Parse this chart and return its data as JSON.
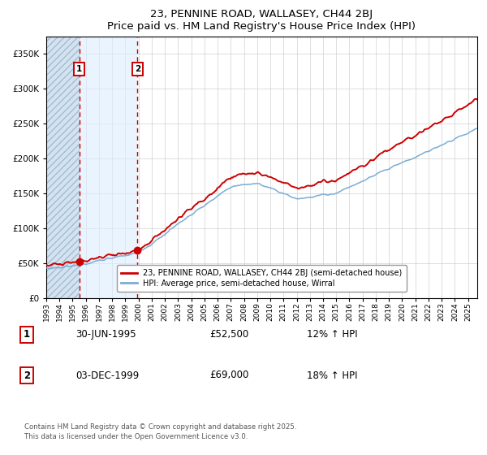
{
  "title": "23, PENNINE ROAD, WALLASEY, CH44 2BJ",
  "subtitle": "Price paid vs. HM Land Registry's House Price Index (HPI)",
  "ytick_values": [
    0,
    50000,
    100000,
    150000,
    200000,
    250000,
    300000,
    350000
  ],
  "ylim": [
    0,
    375000
  ],
  "xlim_start": 1993.0,
  "xlim_end": 2025.7,
  "legend_line1": "23, PENNINE ROAD, WALLASEY, CH44 2BJ (semi-detached house)",
  "legend_line2": "HPI: Average price, semi-detached house, Wirral",
  "sale1_date": 1995.497,
  "sale1_price": 52500,
  "sale2_date": 1999.917,
  "sale2_price": 69000,
  "table_row1": [
    "1",
    "30-JUN-1995",
    "£52,500",
    "12% ↑ HPI"
  ],
  "table_row2": [
    "2",
    "03-DEC-1999",
    "£69,000",
    "18% ↑ HPI"
  ],
  "footer": "Contains HM Land Registry data © Crown copyright and database right 2025.\nThis data is licensed under the Open Government Licence v3.0.",
  "hatch_color": "#d0e0f0",
  "bg_color": "#ffffff",
  "grid_color": "#d0d0d0",
  "red_line_color": "#cc0000",
  "blue_line_color": "#7aadd4",
  "dashed_vline_color": "#cc0000",
  "shade_color": "#ddeeff"
}
